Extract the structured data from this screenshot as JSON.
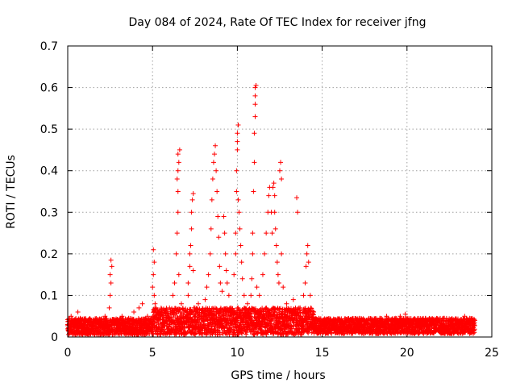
{
  "chart_data": {
    "type": "scatter",
    "title": "Day 084 of 2024, Rate Of TEC Index for receiver jfng",
    "xlabel": "GPS time / hours",
    "ylabel": "ROTI / TECUs",
    "xlim": [
      0,
      25
    ],
    "ylim": [
      0,
      0.7
    ],
    "xticks": [
      0,
      5,
      10,
      15,
      20,
      25
    ],
    "xtick_labels": [
      "0",
      "5",
      "10",
      "15",
      "20",
      "25"
    ],
    "yticks": [
      0,
      0.1,
      0.2,
      0.3,
      0.4,
      0.5,
      0.6,
      0.7
    ],
    "ytick_labels": [
      "0",
      "0.1",
      "0.2",
      "0.3",
      "0.4",
      "0.5",
      "0.6",
      "0.7"
    ],
    "grid": true,
    "marker": "plus",
    "color": "#ff0000",
    "series": [
      {
        "name": "ROTI",
        "points": [
          [
            0.0,
            0.03
          ],
          [
            0.2,
            0.05
          ],
          [
            0.4,
            0.04
          ],
          [
            0.6,
            0.06
          ],
          [
            0.8,
            0.03
          ],
          [
            1.0,
            0.04
          ],
          [
            1.3,
            0.035
          ],
          [
            1.6,
            0.04
          ],
          [
            1.9,
            0.03
          ],
          [
            2.2,
            0.05
          ],
          [
            2.45,
            0.07
          ],
          [
            2.5,
            0.1
          ],
          [
            2.55,
            0.13
          ],
          [
            2.5,
            0.15
          ],
          [
            2.6,
            0.17
          ],
          [
            2.55,
            0.185
          ],
          [
            2.8,
            0.04
          ],
          [
            3.2,
            0.05
          ],
          [
            3.6,
            0.045
          ],
          [
            3.9,
            0.06
          ],
          [
            4.2,
            0.07
          ],
          [
            4.4,
            0.08
          ],
          [
            4.7,
            0.05
          ],
          [
            5.0,
            0.12
          ],
          [
            5.05,
            0.15
          ],
          [
            5.1,
            0.18
          ],
          [
            5.05,
            0.21
          ],
          [
            5.1,
            0.1
          ],
          [
            5.15,
            0.08
          ],
          [
            5.5,
            0.06
          ],
          [
            6.0,
            0.07
          ],
          [
            6.2,
            0.1
          ],
          [
            6.3,
            0.13
          ],
          [
            6.4,
            0.2
          ],
          [
            6.45,
            0.25
          ],
          [
            6.5,
            0.3
          ],
          [
            6.5,
            0.35
          ],
          [
            6.45,
            0.38
          ],
          [
            6.5,
            0.4
          ],
          [
            6.55,
            0.42
          ],
          [
            6.5,
            0.44
          ],
          [
            6.6,
            0.45
          ],
          [
            6.55,
            0.15
          ],
          [
            6.7,
            0.08
          ],
          [
            6.9,
            0.06
          ],
          [
            7.1,
            0.1
          ],
          [
            7.1,
            0.13
          ],
          [
            7.2,
            0.17
          ],
          [
            7.2,
            0.2
          ],
          [
            7.25,
            0.22
          ],
          [
            7.3,
            0.26
          ],
          [
            7.3,
            0.3
          ],
          [
            7.35,
            0.33
          ],
          [
            7.4,
            0.345
          ],
          [
            7.4,
            0.16
          ],
          [
            7.5,
            0.07
          ],
          [
            7.7,
            0.08
          ],
          [
            7.9,
            0.05
          ],
          [
            8.1,
            0.09
          ],
          [
            8.2,
            0.12
          ],
          [
            8.3,
            0.15
          ],
          [
            8.4,
            0.2
          ],
          [
            8.45,
            0.26
          ],
          [
            8.5,
            0.33
          ],
          [
            8.55,
            0.38
          ],
          [
            8.6,
            0.42
          ],
          [
            8.65,
            0.44
          ],
          [
            8.7,
            0.46
          ],
          [
            8.75,
            0.4
          ],
          [
            8.8,
            0.35
          ],
          [
            8.85,
            0.29
          ],
          [
            8.9,
            0.24
          ],
          [
            8.95,
            0.17
          ],
          [
            9.0,
            0.13
          ],
          [
            9.1,
            0.11
          ],
          [
            9.2,
            0.29
          ],
          [
            9.25,
            0.25
          ],
          [
            9.3,
            0.2
          ],
          [
            9.35,
            0.16
          ],
          [
            9.4,
            0.13
          ],
          [
            9.5,
            0.1
          ],
          [
            9.6,
            0.07
          ],
          [
            9.8,
            0.15
          ],
          [
            9.9,
            0.2
          ],
          [
            9.9,
            0.25
          ],
          [
            9.95,
            0.35
          ],
          [
            9.95,
            0.4
          ],
          [
            10.0,
            0.45
          ],
          [
            10.0,
            0.47
          ],
          [
            10.0,
            0.49
          ],
          [
            10.05,
            0.51
          ],
          [
            10.05,
            0.33
          ],
          [
            10.1,
            0.3
          ],
          [
            10.15,
            0.26
          ],
          [
            10.2,
            0.22
          ],
          [
            10.25,
            0.18
          ],
          [
            10.3,
            0.14
          ],
          [
            10.4,
            0.1
          ],
          [
            10.6,
            0.08
          ],
          [
            10.8,
            0.1
          ],
          [
            10.85,
            0.14
          ],
          [
            10.9,
            0.2
          ],
          [
            10.9,
            0.25
          ],
          [
            10.95,
            0.35
          ],
          [
            11.0,
            0.42
          ],
          [
            11.0,
            0.49
          ],
          [
            11.05,
            0.53
          ],
          [
            11.05,
            0.56
          ],
          [
            11.05,
            0.58
          ],
          [
            11.05,
            0.6
          ],
          [
            11.1,
            0.605
          ],
          [
            11.15,
            0.12
          ],
          [
            11.3,
            0.1
          ],
          [
            11.5,
            0.15
          ],
          [
            11.6,
            0.2
          ],
          [
            11.7,
            0.25
          ],
          [
            11.8,
            0.3
          ],
          [
            11.85,
            0.34
          ],
          [
            11.9,
            0.36
          ],
          [
            12.0,
            0.3
          ],
          [
            12.05,
            0.25
          ],
          [
            12.1,
            0.36
          ],
          [
            12.15,
            0.37
          ],
          [
            12.2,
            0.34
          ],
          [
            12.2,
            0.3
          ],
          [
            12.25,
            0.26
          ],
          [
            12.3,
            0.22
          ],
          [
            12.35,
            0.18
          ],
          [
            12.4,
            0.15
          ],
          [
            12.45,
            0.13
          ],
          [
            12.5,
            0.4
          ],
          [
            12.55,
            0.42
          ],
          [
            12.6,
            0.38
          ],
          [
            12.6,
            0.2
          ],
          [
            12.7,
            0.12
          ],
          [
            12.9,
            0.08
          ],
          [
            13.1,
            0.06
          ],
          [
            13.3,
            0.09
          ],
          [
            13.5,
            0.335
          ],
          [
            13.55,
            0.3
          ],
          [
            13.7,
            0.07
          ],
          [
            13.9,
            0.1
          ],
          [
            14.0,
            0.13
          ],
          [
            14.05,
            0.17
          ],
          [
            14.1,
            0.2
          ],
          [
            14.15,
            0.22
          ],
          [
            14.2,
            0.18
          ],
          [
            14.3,
            0.1
          ],
          [
            14.5,
            0.06
          ],
          [
            14.8,
            0.045
          ],
          [
            15.2,
            0.04
          ],
          [
            15.6,
            0.035
          ],
          [
            16.0,
            0.04
          ],
          [
            16.4,
            0.035
          ],
          [
            16.8,
            0.04
          ],
          [
            17.2,
            0.045
          ],
          [
            17.6,
            0.035
          ],
          [
            18.0,
            0.04
          ],
          [
            18.4,
            0.045
          ],
          [
            18.8,
            0.05
          ],
          [
            19.2,
            0.04
          ],
          [
            19.6,
            0.05
          ],
          [
            19.9,
            0.055
          ],
          [
            20.2,
            0.04
          ],
          [
            20.6,
            0.035
          ],
          [
            21.0,
            0.04
          ],
          [
            21.4,
            0.035
          ],
          [
            21.8,
            0.04
          ],
          [
            22.2,
            0.045
          ],
          [
            22.6,
            0.04
          ],
          [
            23.0,
            0.035
          ],
          [
            23.4,
            0.05
          ],
          [
            23.7,
            0.045
          ],
          [
            24.0,
            0.04
          ]
        ]
      }
    ],
    "baseline_band": {
      "description": "dense noise band of points across the day",
      "x_range": [
        0,
        24
      ],
      "bands": [
        {
          "x0": 0,
          "x1": 5,
          "lo": 0.005,
          "hi": 0.045
        },
        {
          "x0": 5,
          "x1": 14.5,
          "lo": 0.005,
          "hi": 0.07
        },
        {
          "x0": 14.5,
          "x1": 24,
          "lo": 0.008,
          "hi": 0.045
        }
      ]
    }
  }
}
